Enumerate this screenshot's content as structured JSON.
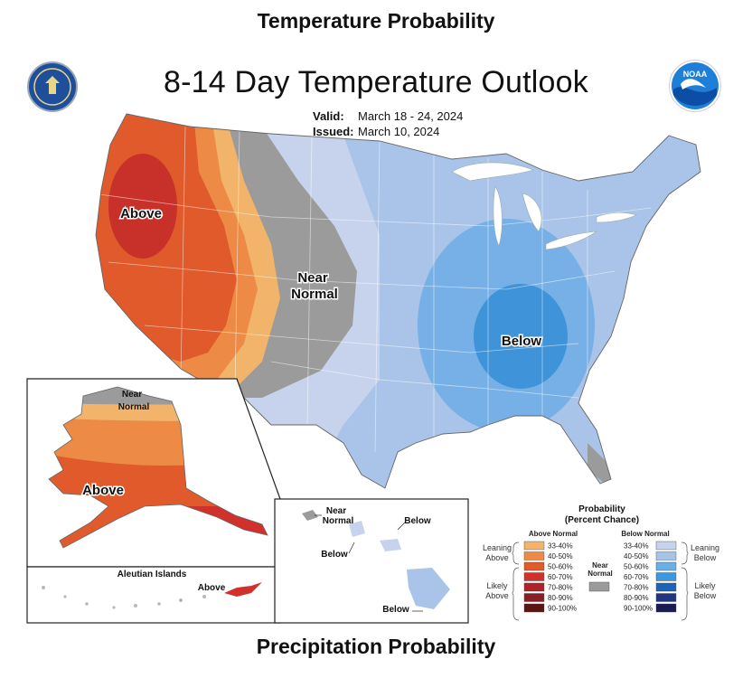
{
  "page": {
    "header": "Temperature Probability",
    "footer": "Precipitation Probability"
  },
  "map": {
    "title": "8-14 Day Temperature Outlook",
    "valid_label": "Valid:",
    "valid_value": "March 18 - 24, 2024",
    "issued_label": "Issued:",
    "issued_value": "March 10, 2024",
    "labels": {
      "above": "Above",
      "near": "Near",
      "normal": "Normal",
      "below": "Below"
    },
    "alaska": {
      "near": "Near",
      "normal": "Normal",
      "above": "Above"
    },
    "aleutian": {
      "title": "Aleutian Islands",
      "above": "Above"
    },
    "hawaii": {
      "near": "Near",
      "normal": "Normal",
      "below_top": "Below",
      "below_left": "Below",
      "below_bottom": "Below"
    }
  },
  "logos": {
    "left": "dept-of-commerce-seal",
    "right": "noaa-logo",
    "right_text": "NOAA"
  },
  "legend": {
    "title": "Probability",
    "subtitle": "(Percent Chance)",
    "above_header": "Above Normal",
    "below_header": "Below Normal",
    "near_label_1": "Near",
    "near_label_2": "Normal",
    "leaning_above_1": "Leaning",
    "leaning_above_2": "Above",
    "likely_above_1": "Likely",
    "likely_above_2": "Above",
    "leaning_below_1": "Leaning",
    "leaning_below_2": "Below",
    "likely_below_1": "Likely",
    "likely_below_2": "Below",
    "above_bins": [
      {
        "label": "33-40%",
        "color": "#f2b46a"
      },
      {
        "label": "40-50%",
        "color": "#ec8a46"
      },
      {
        "label": "50-60%",
        "color": "#e05a2b"
      },
      {
        "label": "60-70%",
        "color": "#d0322b"
      },
      {
        "label": "70-80%",
        "color": "#b0222a"
      },
      {
        "label": "80-90%",
        "color": "#862025"
      },
      {
        "label": "90-100%",
        "color": "#5a1512"
      }
    ],
    "below_bins": [
      {
        "label": "33-40%",
        "color": "#c6d3ec"
      },
      {
        "label": "40-50%",
        "color": "#a6c3e8"
      },
      {
        "label": "50-60%",
        "color": "#6ab0e6"
      },
      {
        "label": "60-70%",
        "color": "#3d96de"
      },
      {
        "label": "70-80%",
        "color": "#1c64b8"
      },
      {
        "label": "80-90%",
        "color": "#243580"
      },
      {
        "label": "90-100%",
        "color": "#1a1a55"
      }
    ],
    "near_color": "#9b9b9b"
  }
}
